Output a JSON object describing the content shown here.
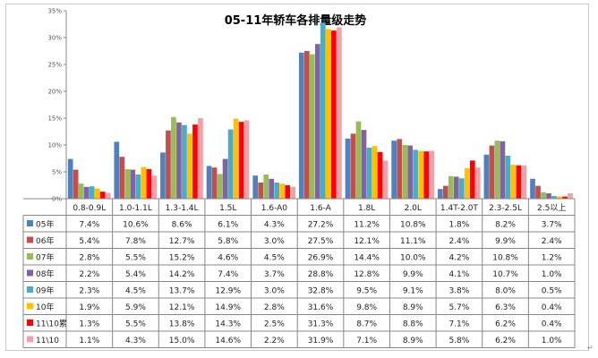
{
  "chart_data": {
    "type": "bar",
    "title": "05-11年轿车各排量级走势",
    "ylim": [
      0,
      35
    ],
    "yticks": [
      "0%",
      "5%",
      "10%",
      "15%",
      "20%",
      "25%",
      "30%",
      "35%"
    ],
    "grid": false,
    "legend": "table-left",
    "categories": [
      "0.8-0.9L",
      "1.0-1.1L",
      "1.3-1.4L",
      "1.5L",
      "1.6-A0",
      "1.6-A",
      "1.8L",
      "2.0L",
      "1.4T-2.0T",
      "2.3-2.5L",
      "2.5以上"
    ],
    "series": [
      {
        "name": "05年",
        "color": "#4f81bd",
        "values": [
          7.4,
          10.6,
          8.6,
          6.1,
          4.3,
          27.2,
          11.2,
          10.8,
          1.8,
          8.2,
          3.7
        ],
        "labels": [
          "7.4%",
          "10.6%",
          "8.6%",
          "6.1%",
          "4.3%",
          "27.2%",
          "11.2%",
          "10.8%",
          "1.8%",
          "8.2%",
          "3.7%"
        ]
      },
      {
        "name": "06年",
        "color": "#c0504d",
        "values": [
          5.4,
          7.8,
          12.7,
          5.8,
          3.0,
          27.5,
          12.1,
          11.1,
          2.4,
          9.9,
          2.4
        ],
        "labels": [
          "5.4%",
          "7.8%",
          "12.7%",
          "5.8%",
          "3.0%",
          "27.5%",
          "12.1%",
          "11.1%",
          "2.4%",
          "9.9%",
          "2.4%"
        ]
      },
      {
        "name": "07年",
        "color": "#9bbb59",
        "values": [
          2.8,
          5.5,
          15.2,
          4.6,
          4.5,
          26.9,
          14.4,
          10.0,
          4.2,
          10.8,
          1.2
        ],
        "labels": [
          "2.8%",
          "5.5%",
          "15.2%",
          "4.6%",
          "4.5%",
          "26.9%",
          "14.4%",
          "10.0%",
          "4.2%",
          "10.8%",
          "1.2%"
        ]
      },
      {
        "name": "08年",
        "color": "#8064a2",
        "values": [
          2.2,
          5.4,
          14.2,
          7.4,
          3.7,
          28.8,
          12.8,
          9.9,
          4.1,
          10.7,
          1.0
        ],
        "labels": [
          "2.2%",
          "5.4%",
          "14.2%",
          "7.4%",
          "3.7%",
          "28.8%",
          "12.8%",
          "9.9%",
          "4.1%",
          "10.7%",
          "1.0%"
        ]
      },
      {
        "name": "09年",
        "color": "#4bacc6",
        "values": [
          2.3,
          4.5,
          13.7,
          12.9,
          3.0,
          32.8,
          9.5,
          9.1,
          3.8,
          8.0,
          0.5
        ],
        "labels": [
          "2.3%",
          "4.5%",
          "13.7%",
          "12.9%",
          "3.0%",
          "32.8%",
          "9.5%",
          "9.1%",
          "3.8%",
          "8.0%",
          "0.5%"
        ]
      },
      {
        "name": "10年",
        "color": "#ffc000",
        "values": [
          1.9,
          5.9,
          12.1,
          14.9,
          2.8,
          31.6,
          9.8,
          8.9,
          5.7,
          6.3,
          0.4
        ],
        "labels": [
          "1.9%",
          "5.9%",
          "12.1%",
          "14.9%",
          "2.8%",
          "31.6%",
          "9.8%",
          "8.9%",
          "5.7%",
          "6.3%",
          "0.4%"
        ]
      },
      {
        "name": "11\\10累",
        "color": "#ff0000",
        "values": [
          1.3,
          5.5,
          13.8,
          14.3,
          2.5,
          31.3,
          8.7,
          8.8,
          7.1,
          6.2,
          0.4
        ],
        "labels": [
          "1.3%",
          "5.5%",
          "13.8%",
          "14.3%",
          "2.5%",
          "31.3%",
          "8.7%",
          "8.8%",
          "7.1%",
          "6.2%",
          "0.4%"
        ]
      },
      {
        "name": "11\\10",
        "color": "#f4a0a8",
        "values": [
          1.1,
          4.3,
          15.0,
          14.6,
          2.2,
          31.9,
          7.1,
          8.9,
          5.8,
          6.2,
          1.0
        ],
        "labels": [
          "1.1%",
          "4.3%",
          "15.0%",
          "14.6%",
          "2.2%",
          "31.9%",
          "7.1%",
          "8.9%",
          "5.8%",
          "6.2%",
          "1.0%"
        ]
      }
    ]
  },
  "edge_mark": "↵"
}
